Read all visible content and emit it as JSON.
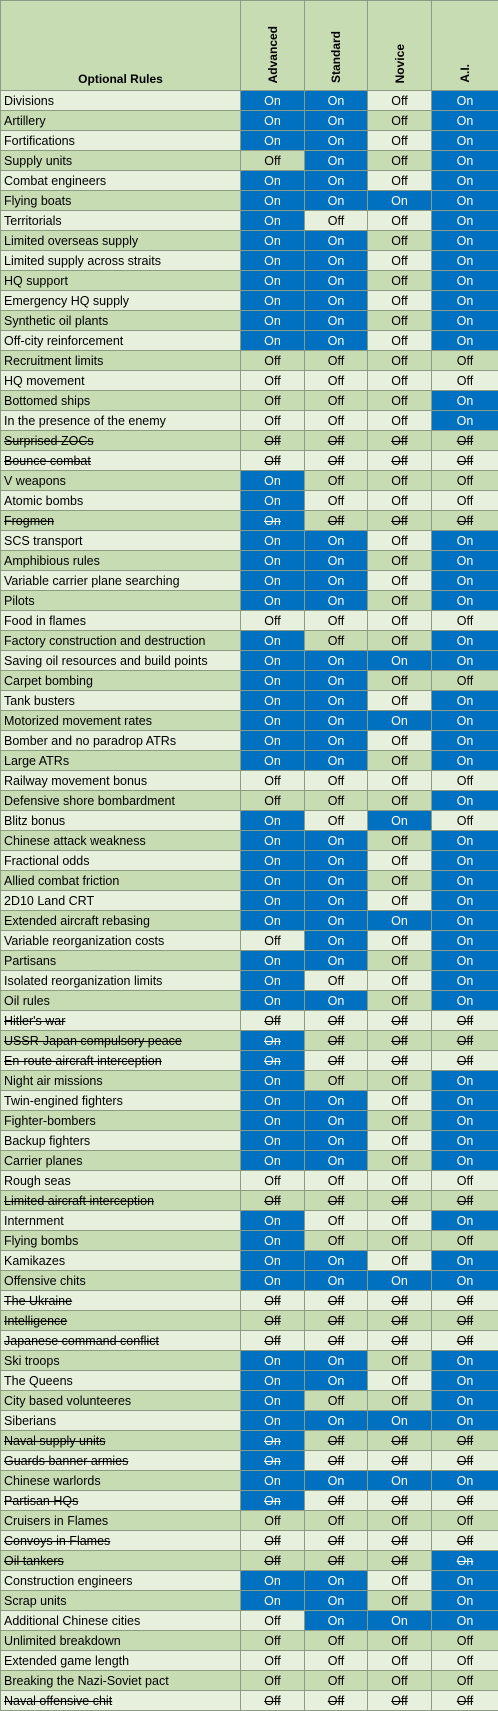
{
  "header": {
    "name": "Optional Rules",
    "levels": [
      "Advanced",
      "Standard",
      "Novice",
      "A.I."
    ]
  },
  "on_label": "On",
  "off_label": "Off",
  "rows": [
    {
      "name": "Divisions",
      "v": [
        1,
        1,
        0,
        1
      ]
    },
    {
      "name": "Artillery",
      "v": [
        1,
        1,
        0,
        1
      ]
    },
    {
      "name": "Fortifications",
      "v": [
        1,
        1,
        0,
        1
      ]
    },
    {
      "name": "Supply units",
      "v": [
        0,
        1,
        0,
        1
      ]
    },
    {
      "name": "Combat engineers",
      "v": [
        1,
        1,
        0,
        1
      ]
    },
    {
      "name": "Flying boats",
      "v": [
        1,
        1,
        1,
        1
      ]
    },
    {
      "name": "Territorials",
      "v": [
        1,
        0,
        0,
        1
      ]
    },
    {
      "name": "Limited overseas supply",
      "v": [
        1,
        1,
        0,
        1
      ]
    },
    {
      "name": "Limited supply across straits",
      "v": [
        1,
        1,
        0,
        1
      ]
    },
    {
      "name": "HQ support",
      "v": [
        1,
        1,
        0,
        1
      ]
    },
    {
      "name": "Emergency HQ supply",
      "v": [
        1,
        1,
        0,
        1
      ]
    },
    {
      "name": "Synthetic oil plants",
      "v": [
        1,
        1,
        0,
        1
      ]
    },
    {
      "name": "Off-city reinforcement",
      "v": [
        1,
        1,
        0,
        1
      ]
    },
    {
      "name": "Recruitment limits",
      "v": [
        0,
        0,
        0,
        0
      ]
    },
    {
      "name": "HQ movement",
      "v": [
        0,
        0,
        0,
        0
      ]
    },
    {
      "name": "Bottomed ships",
      "v": [
        0,
        0,
        0,
        1
      ]
    },
    {
      "name": "In the presence of the enemy",
      "v": [
        0,
        0,
        0,
        1
      ]
    },
    {
      "name": "Surprised ZOCs",
      "v": [
        0,
        0,
        0,
        0
      ],
      "strike": true
    },
    {
      "name": "Bounce combat",
      "v": [
        0,
        0,
        0,
        0
      ],
      "strike": true
    },
    {
      "name": "V weapons",
      "v": [
        1,
        0,
        0,
        0
      ]
    },
    {
      "name": "Atomic bombs",
      "v": [
        1,
        0,
        0,
        0
      ]
    },
    {
      "name": "Frogmen",
      "v": [
        1,
        0,
        0,
        0
      ],
      "strike": true
    },
    {
      "name": "SCS transport",
      "v": [
        1,
        1,
        0,
        1
      ]
    },
    {
      "name": "Amphibious rules",
      "v": [
        1,
        1,
        0,
        1
      ]
    },
    {
      "name": "Variable carrier plane searching",
      "v": [
        1,
        1,
        0,
        1
      ]
    },
    {
      "name": "Pilots",
      "v": [
        1,
        1,
        0,
        1
      ]
    },
    {
      "name": "Food in flames",
      "v": [
        0,
        0,
        0,
        0
      ]
    },
    {
      "name": "Factory construction and destruction",
      "v": [
        1,
        0,
        0,
        1
      ]
    },
    {
      "name": "Saving oil resources and build points",
      "v": [
        1,
        1,
        1,
        1
      ]
    },
    {
      "name": "Carpet bombing",
      "v": [
        1,
        1,
        0,
        0
      ]
    },
    {
      "name": "Tank busters",
      "v": [
        1,
        1,
        0,
        1
      ]
    },
    {
      "name": "Motorized movement rates",
      "v": [
        1,
        1,
        1,
        1
      ]
    },
    {
      "name": "Bomber and no paradrop ATRs",
      "v": [
        1,
        1,
        0,
        1
      ]
    },
    {
      "name": "Large ATRs",
      "v": [
        1,
        1,
        0,
        1
      ]
    },
    {
      "name": "Railway movement bonus",
      "v": [
        0,
        0,
        0,
        0
      ]
    },
    {
      "name": "Defensive shore bombardment",
      "v": [
        0,
        0,
        0,
        1
      ]
    },
    {
      "name": "Blitz bonus",
      "v": [
        1,
        0,
        1,
        0
      ]
    },
    {
      "name": "Chinese attack weakness",
      "v": [
        1,
        1,
        0,
        1
      ]
    },
    {
      "name": "Fractional odds",
      "v": [
        1,
        1,
        0,
        1
      ]
    },
    {
      "name": "Allied combat friction",
      "v": [
        1,
        1,
        0,
        1
      ]
    },
    {
      "name": "2D10 Land CRT",
      "v": [
        1,
        1,
        0,
        1
      ]
    },
    {
      "name": "Extended aircraft rebasing",
      "v": [
        1,
        1,
        1,
        1
      ]
    },
    {
      "name": "Variable reorganization costs",
      "v": [
        0,
        1,
        0,
        1
      ]
    },
    {
      "name": "Partisans",
      "v": [
        1,
        1,
        0,
        1
      ]
    },
    {
      "name": "Isolated reorganization limits",
      "v": [
        1,
        0,
        0,
        1
      ]
    },
    {
      "name": "Oil rules",
      "v": [
        1,
        1,
        0,
        1
      ]
    },
    {
      "name": "Hitler's war",
      "v": [
        0,
        0,
        0,
        0
      ],
      "strike": true
    },
    {
      "name": "USSR-Japan compulsory peace",
      "v": [
        1,
        0,
        0,
        0
      ],
      "strike": true
    },
    {
      "name": "En-route aircraft interception",
      "v": [
        1,
        0,
        0,
        0
      ],
      "strike": true
    },
    {
      "name": "Night air missions",
      "v": [
        1,
        0,
        0,
        1
      ]
    },
    {
      "name": "Twin-engined fighters",
      "v": [
        1,
        1,
        0,
        1
      ]
    },
    {
      "name": "Fighter-bombers",
      "v": [
        1,
        1,
        0,
        1
      ]
    },
    {
      "name": "Backup fighters",
      "v": [
        1,
        1,
        0,
        1
      ]
    },
    {
      "name": "Carrier planes",
      "v": [
        1,
        1,
        0,
        1
      ]
    },
    {
      "name": "Rough seas",
      "v": [
        0,
        0,
        0,
        0
      ]
    },
    {
      "name": "Limited aircraft interception",
      "v": [
        0,
        0,
        0,
        0
      ],
      "strike": true
    },
    {
      "name": "Internment",
      "v": [
        1,
        0,
        0,
        1
      ]
    },
    {
      "name": "Flying bombs",
      "v": [
        1,
        0,
        0,
        0
      ]
    },
    {
      "name": "Kamikazes",
      "v": [
        1,
        1,
        0,
        1
      ]
    },
    {
      "name": "Offensive chits",
      "v": [
        1,
        1,
        1,
        1
      ]
    },
    {
      "name": "The Ukraine",
      "v": [
        0,
        0,
        0,
        0
      ],
      "strike": true
    },
    {
      "name": "Intelligence",
      "v": [
        0,
        0,
        0,
        0
      ],
      "strike": true
    },
    {
      "name": "Japanese command conflict",
      "v": [
        0,
        0,
        0,
        0
      ],
      "strike": true
    },
    {
      "name": "Ski troops",
      "v": [
        1,
        1,
        0,
        1
      ]
    },
    {
      "name": "The Queens",
      "v": [
        1,
        1,
        0,
        1
      ]
    },
    {
      "name": "City based volunteeres",
      "v": [
        1,
        0,
        0,
        1
      ]
    },
    {
      "name": "Siberians",
      "v": [
        1,
        1,
        1,
        1
      ]
    },
    {
      "name": "Naval supply units",
      "v": [
        1,
        0,
        0,
        0
      ],
      "strike": true
    },
    {
      "name": "Guards banner armies",
      "v": [
        1,
        0,
        0,
        0
      ],
      "strike": true
    },
    {
      "name": "Chinese warlords",
      "v": [
        1,
        1,
        1,
        1
      ]
    },
    {
      "name": "Partisan HQs",
      "v": [
        1,
        0,
        0,
        0
      ],
      "strike": true
    },
    {
      "name": "Cruisers in Flames",
      "v": [
        0,
        0,
        0,
        0
      ]
    },
    {
      "name": "Convoys in Flames",
      "v": [
        0,
        0,
        0,
        0
      ],
      "strike": true
    },
    {
      "name": "Oil tankers",
      "v": [
        0,
        0,
        0,
        1
      ],
      "strike": true
    },
    {
      "name": "Construction engineers",
      "v": [
        1,
        1,
        0,
        1
      ]
    },
    {
      "name": "Scrap units",
      "v": [
        1,
        1,
        0,
        1
      ]
    },
    {
      "name": "Additional Chinese cities",
      "v": [
        0,
        1,
        1,
        1
      ]
    },
    {
      "name": "Unlimited breakdown",
      "v": [
        0,
        0,
        0,
        0
      ]
    },
    {
      "name": "Extended game length",
      "v": [
        0,
        0,
        0,
        0
      ]
    },
    {
      "name": "Breaking the Nazi-Soviet pact",
      "v": [
        0,
        0,
        0,
        0
      ]
    },
    {
      "name": "Naval offensive chit",
      "v": [
        0,
        0,
        0,
        0
      ],
      "strike": true
    }
  ]
}
